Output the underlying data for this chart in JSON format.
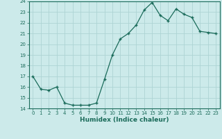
{
  "x": [
    0,
    1,
    2,
    3,
    4,
    5,
    6,
    7,
    8,
    9,
    10,
    11,
    12,
    13,
    14,
    15,
    16,
    17,
    18,
    19,
    20,
    21,
    22,
    23
  ],
  "y": [
    17.0,
    15.8,
    15.7,
    16.0,
    14.5,
    14.3,
    14.3,
    14.3,
    14.5,
    16.7,
    19.0,
    20.5,
    21.0,
    21.8,
    23.2,
    23.9,
    22.7,
    22.2,
    23.3,
    22.8,
    22.5,
    21.2,
    21.1,
    21.0
  ],
  "line_color": "#1a6b5a",
  "marker": "+",
  "marker_size": 3.5,
  "marker_linewidth": 1.0,
  "bg_color": "#cceaea",
  "grid_color": "#aed4d4",
  "xlabel": "Humidex (Indice chaleur)",
  "ylim": [
    14,
    24
  ],
  "xlim": [
    -0.5,
    23.5
  ],
  "yticks": [
    14,
    15,
    16,
    17,
    18,
    19,
    20,
    21,
    22,
    23,
    24
  ],
  "xticks": [
    0,
    1,
    2,
    3,
    4,
    5,
    6,
    7,
    8,
    9,
    10,
    11,
    12,
    13,
    14,
    15,
    16,
    17,
    18,
    19,
    20,
    21,
    22,
    23
  ],
  "tick_fontsize": 5,
  "xlabel_fontsize": 6.5,
  "line_width": 0.9
}
